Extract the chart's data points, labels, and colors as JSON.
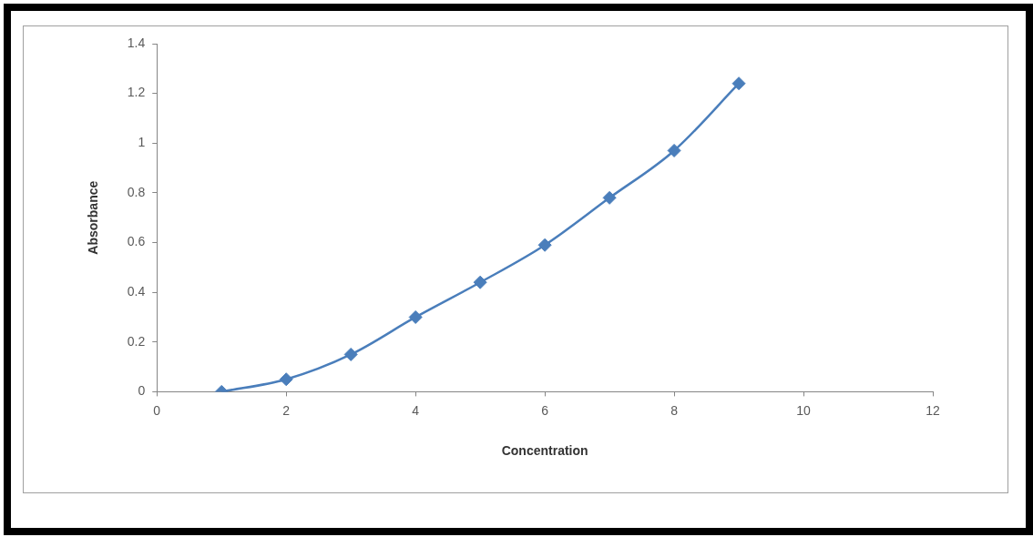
{
  "chart_data": {
    "type": "line",
    "xlabel": "Concentration",
    "ylabel": "Absorbance",
    "xlim": [
      0,
      12
    ],
    "xticks": [
      0,
      2,
      4,
      6,
      8,
      10,
      12
    ],
    "ylim": [
      0,
      1.4
    ],
    "yticks": [
      0,
      0.2,
      0.4,
      0.6,
      0.8,
      1,
      1.2,
      1.4
    ],
    "series": [
      {
        "color": "#4a7ebb",
        "x": [
          1,
          2,
          3,
          4,
          5,
          6,
          7,
          8,
          9
        ],
        "values": [
          0,
          0.05,
          0.15,
          0.3,
          0.44,
          0.59,
          0.78,
          0.97,
          1.24
        ]
      }
    ],
    "marker": "diamond",
    "line_style": "solid",
    "grid": false,
    "legend": false
  }
}
